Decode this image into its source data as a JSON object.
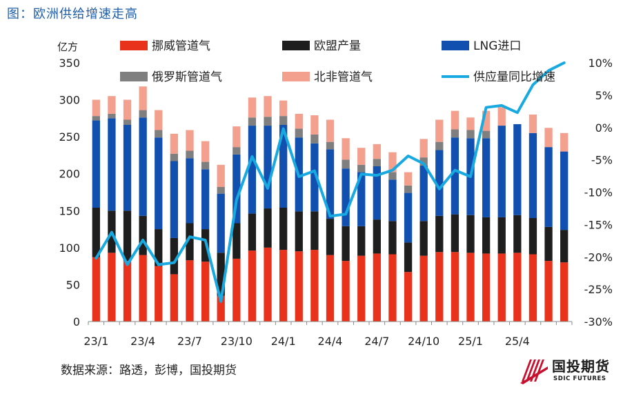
{
  "figure_title": "图：欧洲供给增速走高",
  "source_note": "数据来源：路透，彭博，国投期货",
  "logo": {
    "name": "国投期货",
    "subtitle": "SDIC FUTURES"
  },
  "chart_data": {
    "type": "bar",
    "stacked": true,
    "left_axis": {
      "unit_label": "亿方",
      "min": 0,
      "max": 350,
      "ticks": [
        0,
        50,
        100,
        150,
        200,
        250,
        300,
        350
      ]
    },
    "right_axis": {
      "min": -30,
      "max": 10,
      "ticks": [
        "-30%",
        "-25%",
        "-20%",
        "-15%",
        "-10%",
        "-5%",
        "0%",
        "5%",
        "10%"
      ]
    },
    "x_tick_labels": [
      "23/1",
      "23/4",
      "23/7",
      "23/10",
      "24/1",
      "24/4",
      "24/7",
      "24/10",
      "25/1",
      "25/4"
    ],
    "categories": [
      "2023-01",
      "2023-02",
      "2023-03",
      "2023-04",
      "2023-05",
      "2023-06",
      "2023-07",
      "2023-08",
      "2023-09",
      "2023-10",
      "2023-11",
      "2023-12",
      "2024-01",
      "2024-02",
      "2024-03",
      "2024-04",
      "2024-05",
      "2024-06",
      "2024-07",
      "2024-08",
      "2024-09",
      "2024-10",
      "2024-11",
      "2024-12",
      "2025-01",
      "2025-02",
      "2025-03",
      "2025-04",
      "2025-05",
      "2025-06",
      "2025-07"
    ],
    "legend_placement": "top",
    "series": [
      {
        "name": "挪威管道气",
        "color": "#e8321c",
        "values": [
          87,
          93,
          82,
          90,
          75,
          64,
          83,
          81,
          35,
          85,
          96,
          100,
          97,
          95,
          97,
          90,
          82,
          89,
          92,
          91,
          67,
          89,
          94,
          94,
          93,
          92,
          92,
          93,
          91,
          82,
          80
        ]
      },
      {
        "name": "欧盟产量",
        "color": "#1e1e1e",
        "values": [
          67,
          57,
          68,
          53,
          50,
          49,
          50,
          44,
          58,
          48,
          50,
          53,
          57,
          54,
          52,
          49,
          47,
          40,
          46,
          45,
          40,
          47,
          49,
          51,
          51,
          49,
          49,
          51,
          49,
          46,
          44
        ]
      },
      {
        "name": "LNG进口",
        "color": "#1250b0",
        "values": [
          118,
          125,
          116,
          133,
          124,
          104,
          88,
          81,
          80,
          93,
          119,
          112,
          112,
          100,
          92,
          94,
          78,
          73,
          72,
          56,
          67,
          75,
          89,
          104,
          104,
          107,
          124,
          123,
          115,
          108,
          106
        ]
      },
      {
        "name": "俄罗斯管道气",
        "color": "#7f7f7f",
        "values": [
          6,
          6,
          7,
          10,
          10,
          10,
          10,
          10,
          9,
          10,
          11,
          12,
          12,
          12,
          12,
          10,
          12,
          10,
          10,
          10,
          10,
          11,
          11,
          11,
          11,
          10,
          0,
          0,
          0,
          0,
          0
        ]
      },
      {
        "name": "北非管道气",
        "color": "#f4a08e",
        "values": [
          22,
          24,
          27,
          32,
          27,
          27,
          28,
          28,
          30,
          28,
          27,
          28,
          21,
          20,
          26,
          30,
          29,
          23,
          20,
          27,
          18,
          25,
          30,
          25,
          17,
          27,
          25,
          0,
          25,
          26,
          25
        ]
      },
      {
        "name": "供应量同比增速",
        "type": "line",
        "axis": "right",
        "color": "#17a9e0",
        "values": [
          -20.2,
          -16.2,
          -21.2,
          -17.4,
          -21.2,
          -20.9,
          -16.9,
          -17.4,
          -26.9,
          -11.2,
          -4.5,
          -9.4,
          -0.2,
          -7.6,
          -6.7,
          -13.7,
          -13.4,
          -7.2,
          -7.4,
          -6.6,
          -4.4,
          -5.6,
          -9.5,
          -6.6,
          -7.6,
          3.1,
          3.4,
          2.3,
          6.6,
          8.8,
          10.2
        ]
      }
    ]
  }
}
